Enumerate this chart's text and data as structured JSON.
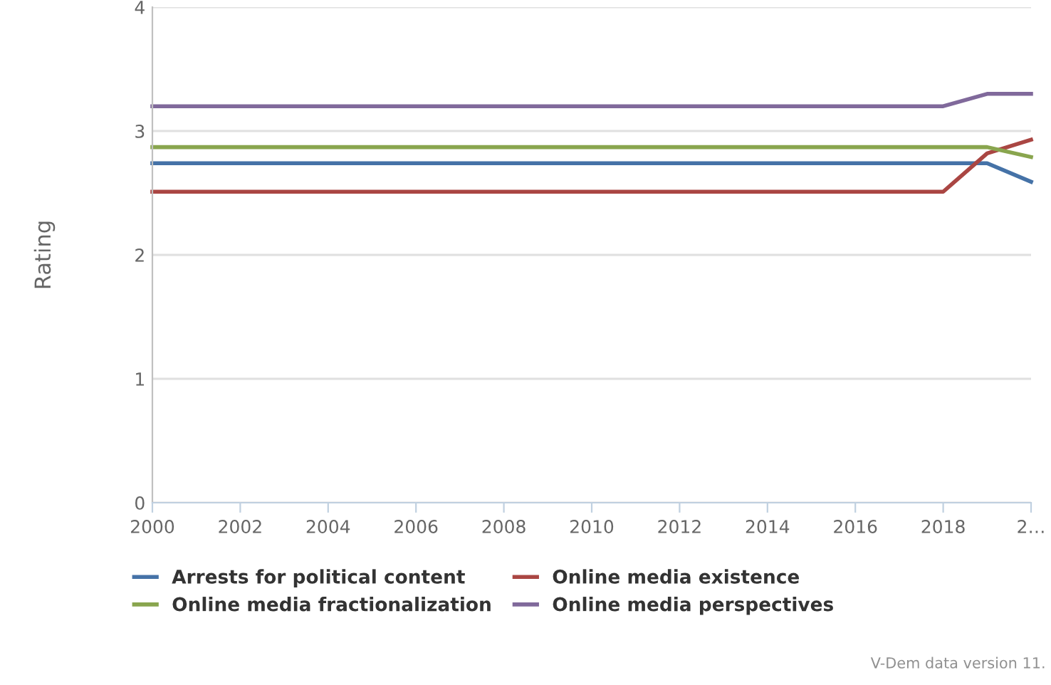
{
  "chart_data": {
    "type": "line",
    "ylabel": "Rating",
    "x": [
      2000,
      2018,
      2019,
      2020
    ],
    "series": [
      {
        "name": "Arrests for political content",
        "color": "#4572a7",
        "values": [
          2.74,
          2.74,
          2.74,
          2.59
        ]
      },
      {
        "name": "Online media existence",
        "color": "#aa4643",
        "values": [
          2.51,
          2.51,
          2.82,
          2.93
        ]
      },
      {
        "name": "Online media fractionalization",
        "color": "#89a54e",
        "values": [
          2.87,
          2.87,
          2.87,
          2.79
        ]
      },
      {
        "name": "Online media perspectives",
        "color": "#80699b",
        "values": [
          3.2,
          3.2,
          3.3,
          3.3
        ]
      }
    ],
    "xlim": [
      2000,
      2020
    ],
    "xticks": [
      2000,
      2002,
      2004,
      2006,
      2008,
      2010,
      2012,
      2014,
      2016,
      2018,
      {
        "value": 2020,
        "label": "2…"
      }
    ],
    "ylim": [
      0,
      4
    ],
    "yticks": [
      0,
      1,
      2,
      3,
      4
    ],
    "grid": "y",
    "legend": "bottom",
    "marker": "none",
    "line_style": "solid",
    "annotations": [
      "V-Dem data version 11."
    ]
  }
}
